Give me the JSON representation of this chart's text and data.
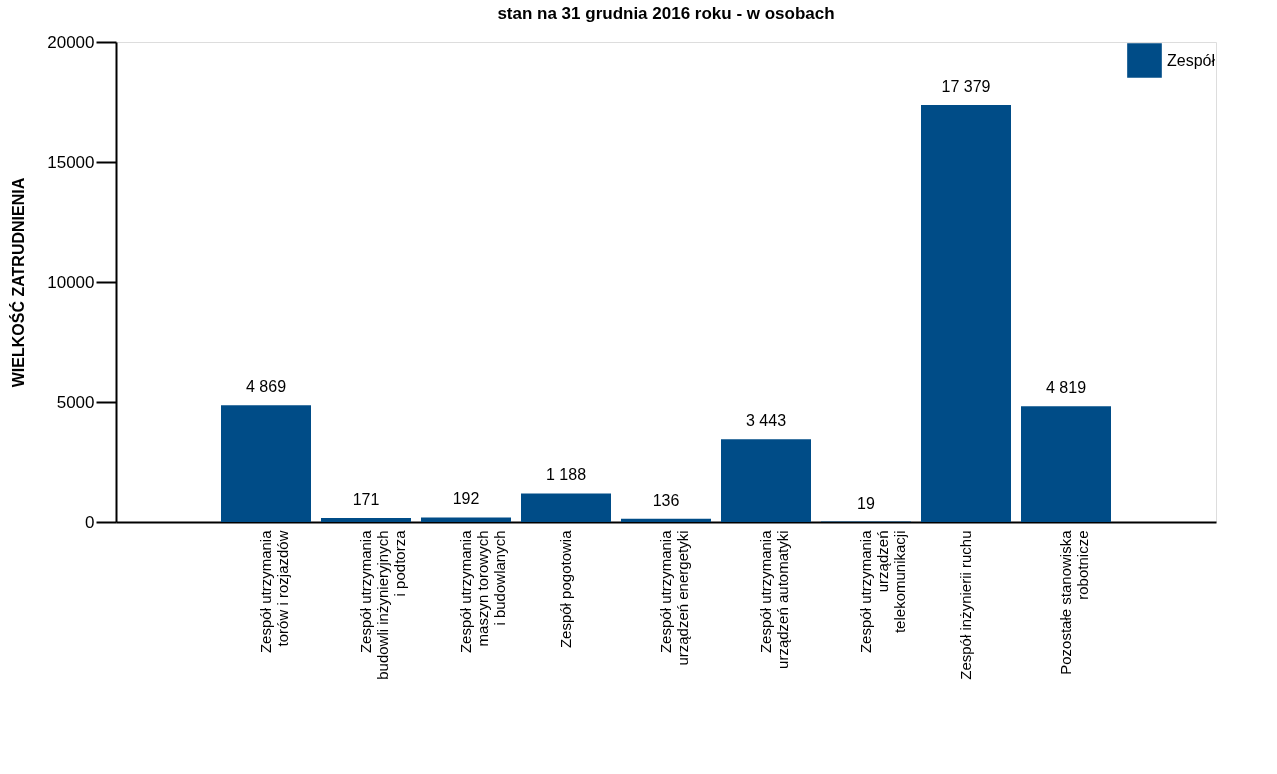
{
  "chart_data": {
    "type": "bar",
    "title": "stan na 31 grudnia 2016 roku - w osobach",
    "ylabel": "WIELKOŚĆ ZATRUDNIENIA",
    "categories": [
      null,
      "Zespół utrzymania\ntorów i rozjazdów",
      "Zespół utrzymania\nbudowli inżynieryjnych\ni podtorza",
      "Zespół utrzymania\nmaszyn torowych\ni budowlanych",
      "Zespół pogotowia",
      "Zespół utrzymania\nurządzeń energetyki",
      "Zespół utrzymania\nurządzeń automatyki",
      "Zespół utrzymania\nurządzeń\ntelekomunikacji",
      "Zespół inżynierii ruchu",
      "Pozostałe stanowiska\nrobotnicze",
      null
    ],
    "series": [
      {
        "name": "Zespół",
        "color": "#004c87",
        "values": [
          null,
          4869,
          171,
          192,
          1188,
          136,
          3443,
          19,
          17379,
          4819,
          null
        ],
        "value_labels": [
          null,
          "4 869",
          "171",
          "192",
          "1 188",
          "136",
          "3 443",
          "19",
          "17 379",
          "4 819",
          null
        ]
      }
    ],
    "ylim": [
      0,
      20000
    ],
    "yticks": [
      0,
      5000,
      10000,
      15000,
      20000
    ],
    "grid": false,
    "legend": "top right"
  }
}
